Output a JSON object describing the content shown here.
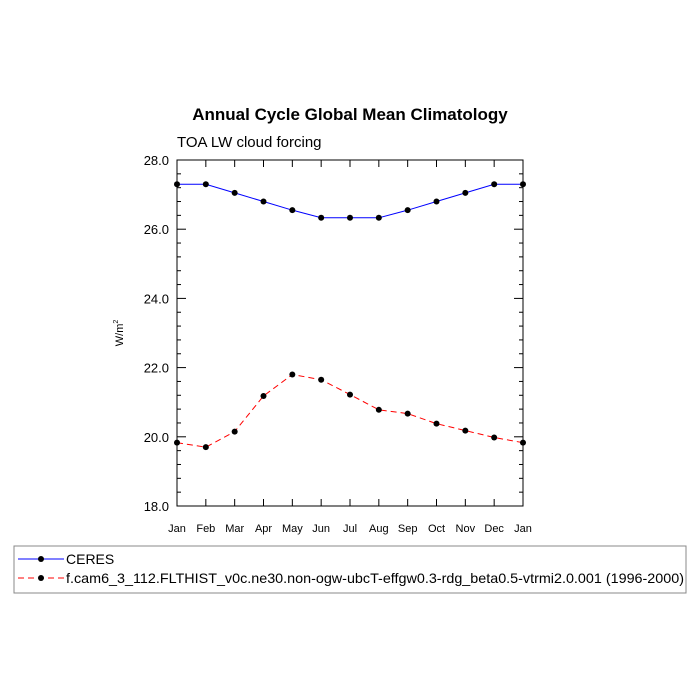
{
  "chart_data": {
    "type": "line",
    "title": "Annual Cycle Global Mean Climatology",
    "subtitle": "TOA LW cloud forcing",
    "ylabel": "W/m",
    "ylabel_sup": "2",
    "xlabel": "",
    "categories": [
      "Jan",
      "Feb",
      "Mar",
      "Apr",
      "May",
      "Jun",
      "Jul",
      "Aug",
      "Sep",
      "Oct",
      "Nov",
      "Dec",
      "Jan"
    ],
    "ylim": [
      18.0,
      28.0
    ],
    "yticks": [
      "18.0",
      "20.0",
      "22.0",
      "24.0",
      "26.0",
      "28.0"
    ],
    "grid": false,
    "legend_position": "bottom",
    "series": [
      {
        "name": "CERES",
        "color": "#0000ff",
        "dash": "solid",
        "values": [
          27.3,
          27.3,
          27.05,
          26.8,
          26.55,
          26.33,
          26.33,
          26.33,
          26.55,
          26.8,
          27.05,
          27.3,
          27.3
        ]
      },
      {
        "name": "f.cam6_3_112.FLTHIST_v0c.ne30.non-ogw-ubcT-effgw0.3-rdg_beta0.5-vtrmi2.0.001 (1996-2000)",
        "color": "#ff0000",
        "dash": "dashed",
        "values": [
          19.83,
          19.7,
          20.15,
          21.18,
          21.8,
          21.65,
          21.22,
          20.78,
          20.67,
          20.38,
          20.18,
          19.98,
          19.83
        ]
      }
    ]
  }
}
